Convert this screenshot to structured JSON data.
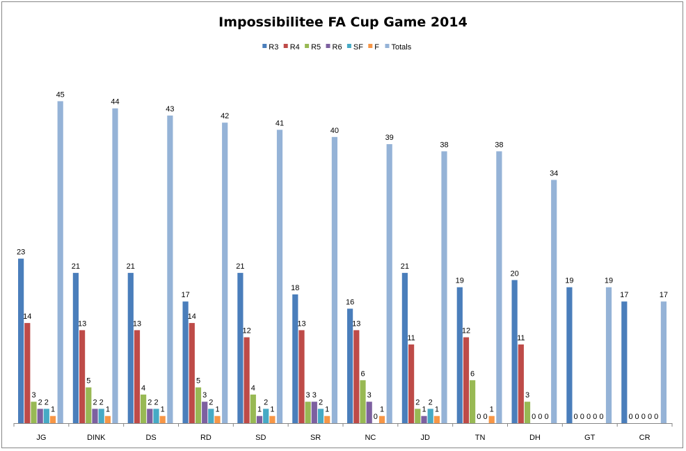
{
  "chart_data": {
    "type": "bar",
    "title": "Impossibilitee FA Cup Game 2014",
    "xlabel": "",
    "ylabel": "",
    "ylim": [
      0,
      50
    ],
    "grid": false,
    "legend_position": "top",
    "categories": [
      "JG",
      "DINK",
      "DS",
      "RD",
      "SD",
      "SR",
      "NC",
      "JD",
      "TN",
      "DH",
      "GT",
      "CR"
    ],
    "series": [
      {
        "name": "R3",
        "color": "#4A7EBB",
        "values": [
          23,
          21,
          21,
          17,
          21,
          18,
          16,
          21,
          19,
          20,
          19,
          17
        ]
      },
      {
        "name": "R4",
        "color": "#BE4B48",
        "values": [
          14,
          13,
          13,
          14,
          12,
          13,
          13,
          11,
          12,
          11,
          0,
          0
        ]
      },
      {
        "name": "R5",
        "color": "#98B954",
        "values": [
          3,
          5,
          4,
          5,
          4,
          3,
          6,
          2,
          6,
          3,
          0,
          0
        ]
      },
      {
        "name": "R6",
        "color": "#7D60A0",
        "values": [
          2,
          2,
          2,
          3,
          1,
          3,
          3,
          1,
          0,
          0,
          0,
          0
        ]
      },
      {
        "name": "SF",
        "color": "#46AAC5",
        "values": [
          2,
          2,
          2,
          2,
          2,
          2,
          0,
          2,
          0,
          0,
          0,
          0
        ]
      },
      {
        "name": "F",
        "color": "#F79646",
        "values": [
          1,
          1,
          1,
          1,
          1,
          1,
          1,
          1,
          1,
          0,
          0,
          0
        ]
      },
      {
        "name": "Totals",
        "color": "#95B3D7",
        "values": [
          45,
          44,
          43,
          42,
          41,
          40,
          39,
          38,
          38,
          34,
          19,
          17
        ]
      }
    ]
  }
}
